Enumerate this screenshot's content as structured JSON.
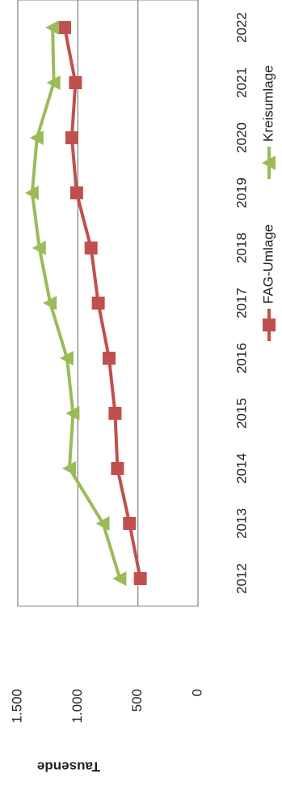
{
  "chart_data": {
    "type": "line",
    "y_axis_label": "Tausende",
    "categories": [
      "2012",
      "2013",
      "2014",
      "2015",
      "2016",
      "2017",
      "2018",
      "2019",
      "2020",
      "2021",
      "2022"
    ],
    "series": [
      {
        "name": "FAG-Umlage",
        "color": "#c0504d",
        "marker": "square",
        "values": [
          480,
          570,
          670,
          690,
          740,
          830,
          890,
          1010,
          1050,
          1020,
          1110
        ]
      },
      {
        "name": "Kreisumlage",
        "color": "#9bbb59",
        "marker": "triangle",
        "values": [
          650,
          790,
          1070,
          1040,
          1090,
          1230,
          1320,
          1380,
          1340,
          1200,
          1210
        ]
      }
    ],
    "ylim": [
      0,
      1500
    ],
    "yticks": [
      0,
      500,
      {
        "value": 1000,
        "label": "1.000"
      },
      {
        "value": 1500,
        "label": "1.500"
      }
    ],
    "grid": true,
    "legend": "bottom"
  }
}
